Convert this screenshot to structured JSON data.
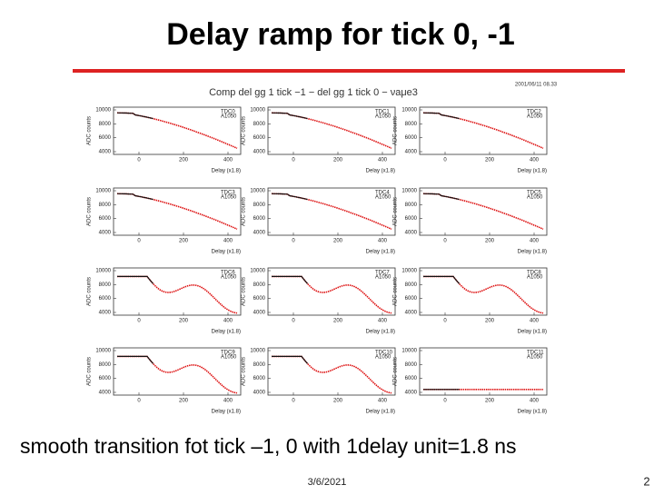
{
  "header": {
    "title": "Delay ramp for tick 0, -1"
  },
  "figure": {
    "title": "Comp del gg 1 tick −1 − del gg 1 tick 0 − νaμe3",
    "timestamp": "2001/06/11 08.33",
    "y_axis_label": "ADC counts",
    "x_axis_label": "Delay (x1.8)",
    "yticks": [
      "10000",
      "8000",
      "6000",
      "4000"
    ],
    "xticks": [
      "0",
      "200",
      "400"
    ],
    "panels": [
      {
        "label": "TDC0",
        "sublabel": "A1050"
      },
      {
        "label": "TDC1",
        "sublabel": "A1050"
      },
      {
        "label": "TDC2",
        "sublabel": "A1050"
      },
      {
        "label": "TDC3",
        "sublabel": "A1050"
      },
      {
        "label": "TDC4",
        "sublabel": "A1050"
      },
      {
        "label": "TDC5",
        "sublabel": "A1050"
      },
      {
        "label": "TDC6",
        "sublabel": "A1050"
      },
      {
        "label": "TDC7",
        "sublabel": "A1050"
      },
      {
        "label": "TDC8",
        "sublabel": "A1050"
      },
      {
        "label": "TDC9",
        "sublabel": "A1050"
      },
      {
        "label": "TDC10",
        "sublabel": "A1050"
      },
      {
        "label": "TDC11",
        "sublabel": "A1050"
      }
    ]
  },
  "caption": "smooth transition fot tick –1, 0 with 1delay unit=1.8 ns",
  "footer": {
    "date": "3/6/2021",
    "page": "2"
  }
}
